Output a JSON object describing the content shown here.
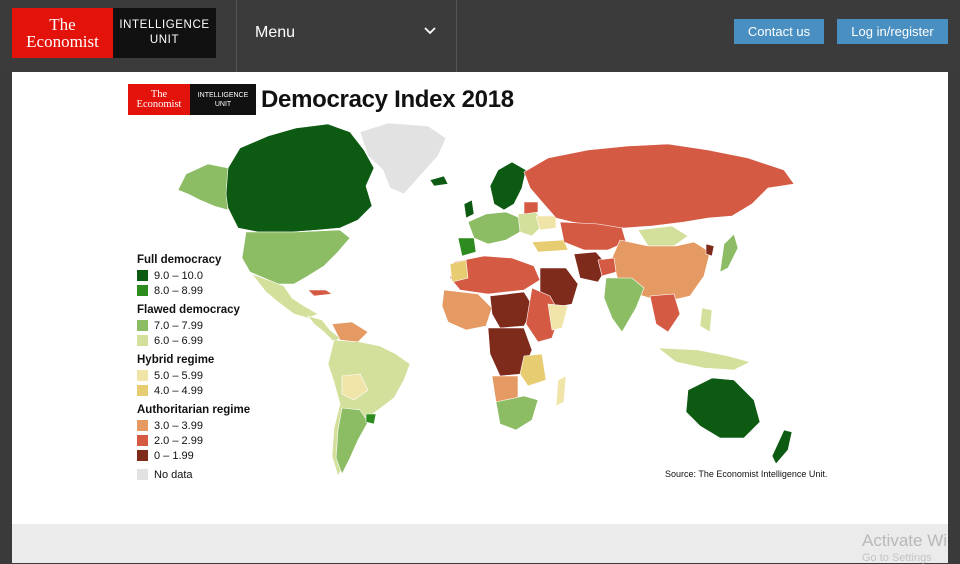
{
  "header": {
    "logo_line1": "The",
    "logo_line2": "Economist",
    "logo_unit_line1": "INTELLIGENCE",
    "logo_unit_line2": "UNIT",
    "menu_label": "Menu",
    "contact_label": "Contact us",
    "login_label": "Log in/register"
  },
  "map": {
    "logo_line1": "The",
    "logo_line2": "Economist",
    "logo_unit_line1": "INTELLIGENCE",
    "logo_unit_line2": "UNIT",
    "title": "Democracy Index 2018",
    "source": "Source: The Economist Intelligence Unit.",
    "legend": [
      {
        "heading": "Full democracy",
        "items": [
          {
            "label": "9.0 – 10.0",
            "color": "#0d5a12"
          },
          {
            "label": "8.0 – 8.99",
            "color": "#2e8b1f"
          }
        ]
      },
      {
        "heading": "Flawed democracy",
        "items": [
          {
            "label": "7.0 – 7.99",
            "color": "#8cbc64"
          },
          {
            "label": "6.0 – 6.99",
            "color": "#d3e09b"
          }
        ]
      },
      {
        "heading": "Hybrid regime",
        "items": [
          {
            "label": "5.0 – 5.99",
            "color": "#f1e4a8"
          },
          {
            "label": "4.0 – 4.99",
            "color": "#e8cc72"
          }
        ]
      },
      {
        "heading": "Authoritarian regime",
        "items": [
          {
            "label": "3.0 – 3.99",
            "color": "#e59a63"
          },
          {
            "label": "2.0 – 2.99",
            "color": "#d55a44"
          },
          {
            "label": "0 – 1.99",
            "color": "#7e2b1c"
          }
        ]
      }
    ],
    "no_data_label": "No data",
    "no_data_color": "#e2e2e2"
  },
  "overlay": {
    "activate_line1": "Activate Wi",
    "activate_line2": "Go to Settings"
  }
}
